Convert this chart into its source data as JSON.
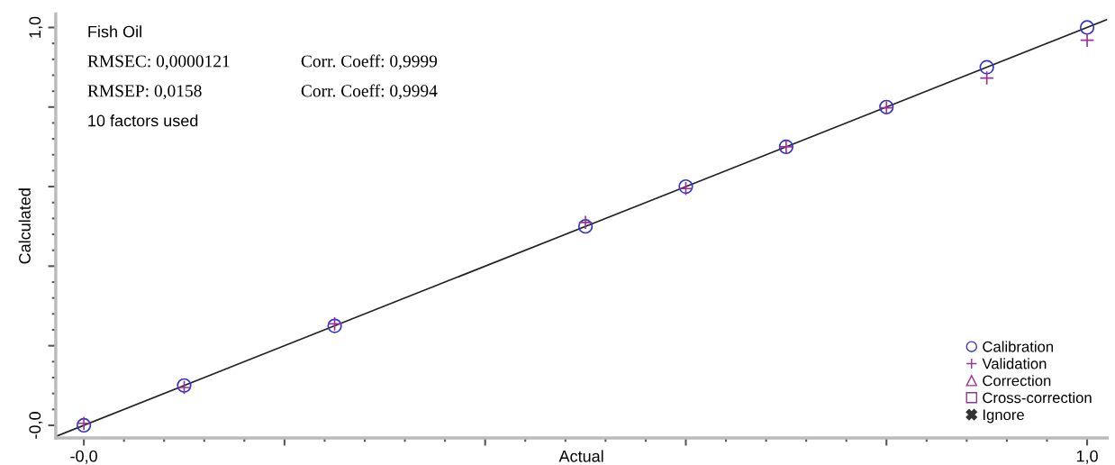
{
  "chart_data": {
    "type": "scatter",
    "xlabel": "Actual",
    "ylabel": "Calculated",
    "annotations": [
      "Fish Oil",
      "RMSEC: 0,0000121",
      "Corr. Coeff: 0,9999",
      "RMSEP: 0,0158",
      "Corr. Coeff: 0,9994",
      "10 factors used"
    ],
    "xlim": [
      -0.028,
      1.02
    ],
    "ylim": [
      -0.032,
      1.034
    ],
    "xticks": [
      {
        "value": 0,
        "label": "-0,0"
      },
      {
        "value": 0.2,
        "label": null
      },
      {
        "value": 0.4,
        "label": null
      },
      {
        "value": 0.6,
        "label": null
      },
      {
        "value": 0.8,
        "label": null
      },
      {
        "value": 1.0,
        "label": "1,0"
      }
    ],
    "yticks": [
      {
        "value": 0,
        "label": "-0,0"
      },
      {
        "value": 0.2,
        "label": null
      },
      {
        "value": 0.4,
        "label": null
      },
      {
        "value": 0.6,
        "label": null
      },
      {
        "value": 0.8,
        "label": null
      },
      {
        "value": 1.0,
        "label": "1,0"
      }
    ],
    "grid": false,
    "legend": "bottom right",
    "series": [
      {
        "type": "line",
        "color": "#222222",
        "x": [
          -0.028,
          1.02
        ],
        "values": [
          -0.028,
          1.02
        ],
        "marker": "none",
        "line_style": "solid"
      },
      {
        "name": "Calibration",
        "color": "#3333cc",
        "marker": "circle",
        "x": [
          0,
          0.1,
          0.25,
          0.5,
          0.6,
          0.7,
          0.8,
          0.9,
          1.0
        ],
        "values": [
          0,
          0.1,
          0.25,
          0.5,
          0.6,
          0.7,
          0.8,
          0.9,
          1.0
        ]
      },
      {
        "name": "Validation",
        "color": "#993399",
        "marker": "cross",
        "x": [
          0,
          0.1,
          0.25,
          0.5,
          0.6,
          0.7,
          0.8,
          0.9,
          1.0
        ],
        "values": [
          0.005,
          0.095,
          0.255,
          0.51,
          0.595,
          0.7,
          0.798,
          0.873,
          0.968
        ]
      },
      {
        "name": "Correction",
        "color": "#993399",
        "marker": "triangle"
      },
      {
        "name": "Cross-correction",
        "color": "#993399",
        "marker": "square"
      },
      {
        "name": "Ignore",
        "color": "#333333",
        "marker": "star"
      }
    ]
  }
}
